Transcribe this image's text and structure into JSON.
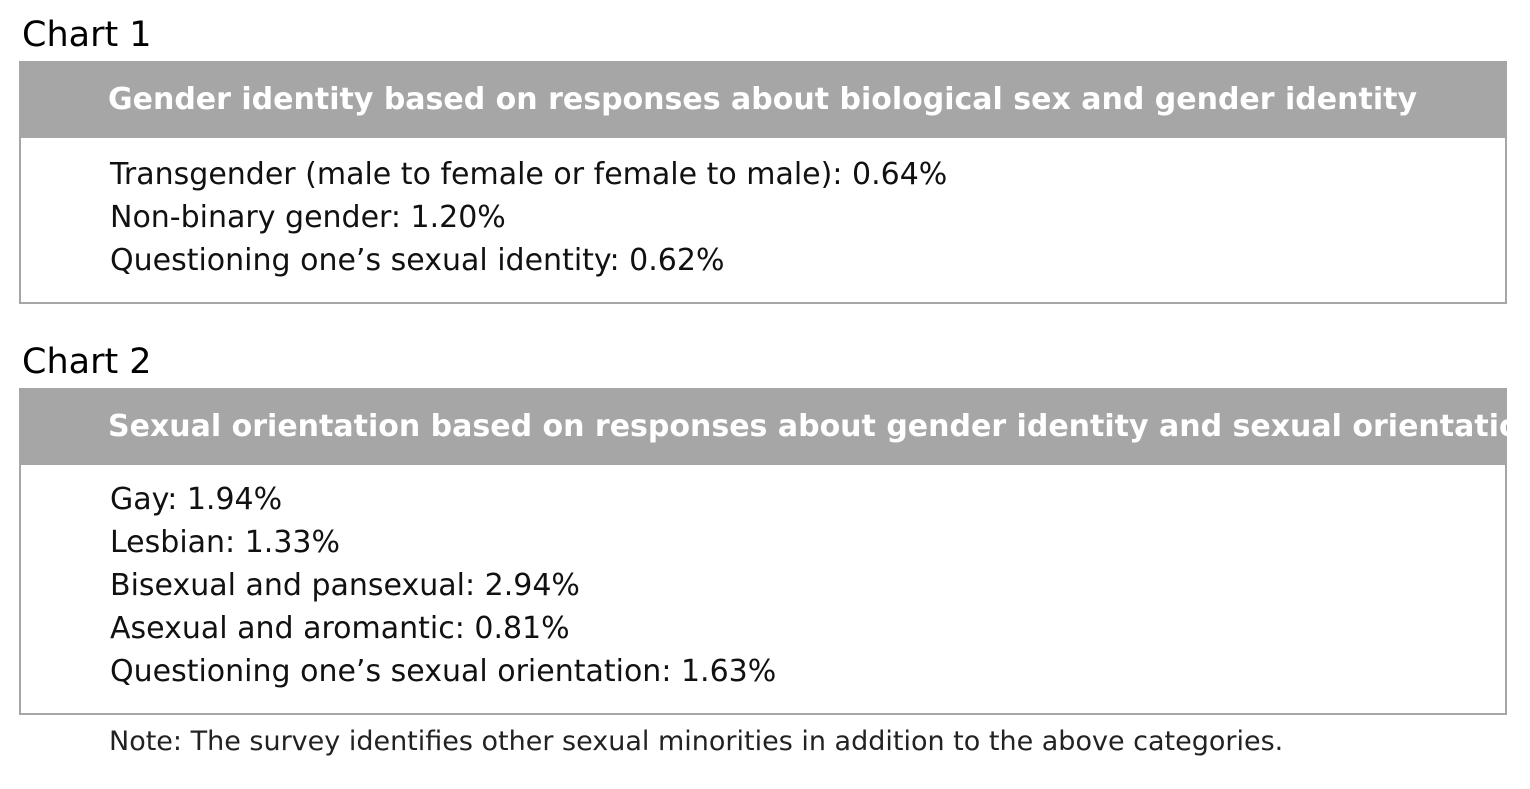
{
  "chart1": {
    "label": "Chart 1",
    "title": "Gender identity based on responses about biological sex and gender identity",
    "items": [
      "Transgender (male to female or female to male): 0.64%",
      "Non-binary gender: 1.20%",
      "Questioning one’s sexual identity: 0.62%"
    ]
  },
  "chart2": {
    "label": "Chart 2",
    "title": "Sexual orientation based on responses about gender identity and sexual orientation",
    "items": [
      "Gay: 1.94%",
      "Lesbian: 1.33%",
      "Bisexual and pansexual: 2.94%",
      "Asexual and aromantic: 0.81%",
      "Questioning one’s sexual orientation: 1.63%"
    ]
  },
  "note": "Note: The survey identifies other sexual minorities in addition to the above categories.",
  "colors": {
    "header_background": "#a6a6a6",
    "header_text": "#ffffff",
    "border": "#a6a6a6"
  }
}
